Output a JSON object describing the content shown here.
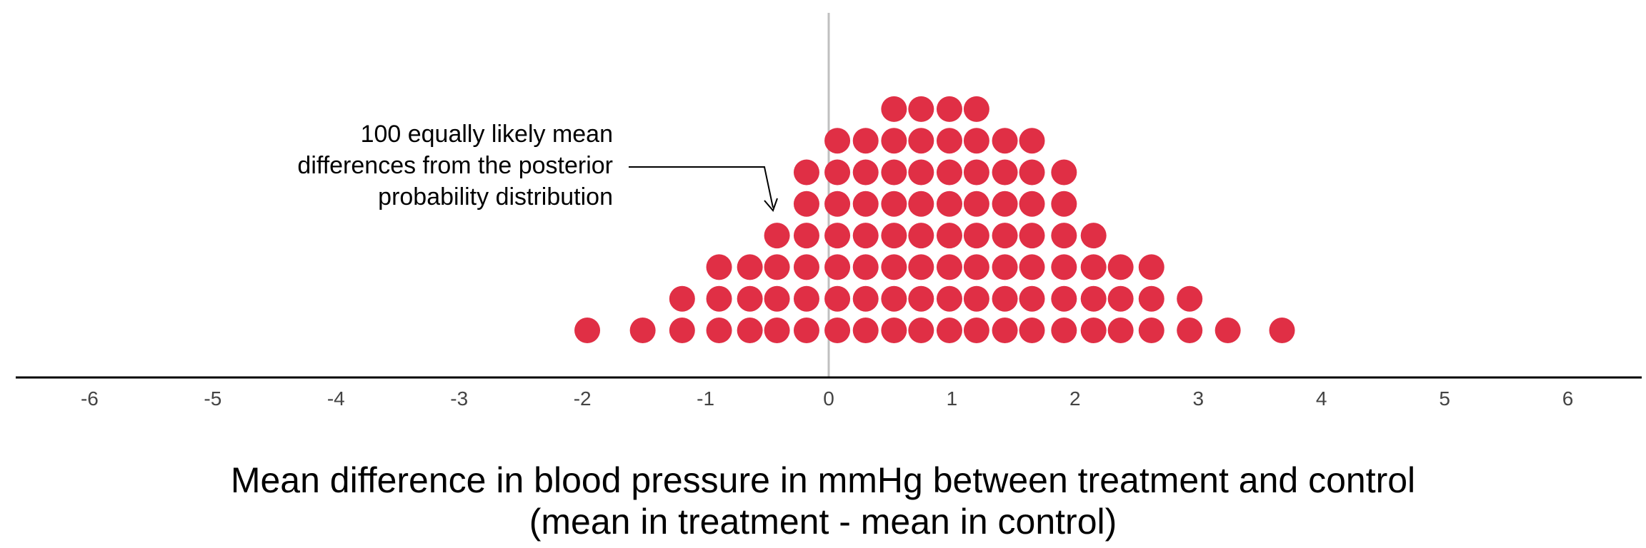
{
  "chart_data": {
    "type": "scatter",
    "subtype": "quantile-dotplot",
    "title": "",
    "xlabel_lines": [
      "Mean difference in blood pressure in mmHg between treatment and control",
      "(mean in treatment - mean in control)"
    ],
    "ylabel": "",
    "xlim": [
      -6.6,
      6.6
    ],
    "x_ticks": [
      -6,
      -5,
      -4,
      -3,
      -2,
      -1,
      0,
      1,
      2,
      3,
      4,
      5,
      6
    ],
    "reference_line_x": 0,
    "grid": false,
    "dot_color": "#E02F45",
    "reference_line_color": "#c0c0c0",
    "annotation": {
      "lines": [
        "100 equally likely mean",
        "differences from the posterior",
        "probability distribution"
      ]
    },
    "stacks": [
      {
        "x": -1.96,
        "count": 1
      },
      {
        "x": -1.51,
        "count": 1
      },
      {
        "x": -1.19,
        "count": 2
      },
      {
        "x": -0.89,
        "count": 3
      },
      {
        "x": -0.64,
        "count": 3
      },
      {
        "x": -0.42,
        "count": 4
      },
      {
        "x": -0.18,
        "count": 6
      },
      {
        "x": 0.07,
        "count": 7
      },
      {
        "x": 0.3,
        "count": 7
      },
      {
        "x": 0.53,
        "count": 8
      },
      {
        "x": 0.75,
        "count": 8
      },
      {
        "x": 0.98,
        "count": 8
      },
      {
        "x": 1.2,
        "count": 8
      },
      {
        "x": 1.43,
        "count": 7
      },
      {
        "x": 1.65,
        "count": 7
      },
      {
        "x": 1.91,
        "count": 6
      },
      {
        "x": 2.15,
        "count": 4
      },
      {
        "x": 2.37,
        "count": 3
      },
      {
        "x": 2.62,
        "count": 3
      },
      {
        "x": 2.93,
        "count": 2
      },
      {
        "x": 3.24,
        "count": 1
      },
      {
        "x": 3.68,
        "count": 1
      }
    ]
  }
}
